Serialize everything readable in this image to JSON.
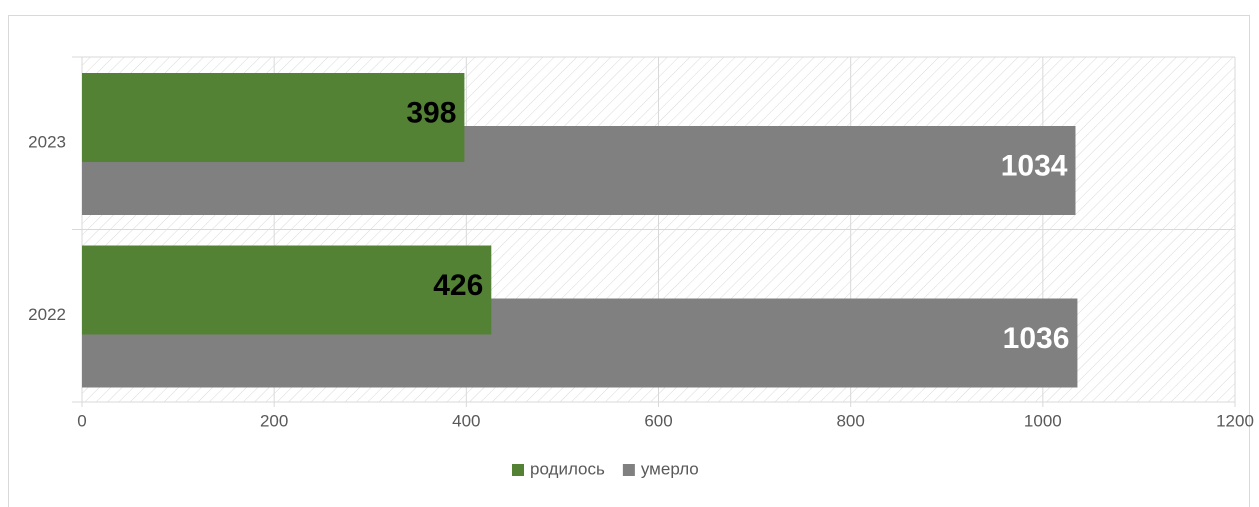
{
  "chart_data": {
    "type": "bar",
    "orientation": "horizontal",
    "categories": [
      "2023",
      "2022"
    ],
    "series": [
      {
        "name": "родилось",
        "color": "#548235",
        "values": [
          398,
          426
        ]
      },
      {
        "name": "умерло",
        "color": "#808080",
        "values": [
          1034,
          1036
        ]
      }
    ],
    "xlim": [
      0,
      1200
    ],
    "xticks": [
      0,
      200,
      400,
      600,
      800,
      1000,
      1200
    ],
    "grid": true,
    "legend": "bottom"
  }
}
